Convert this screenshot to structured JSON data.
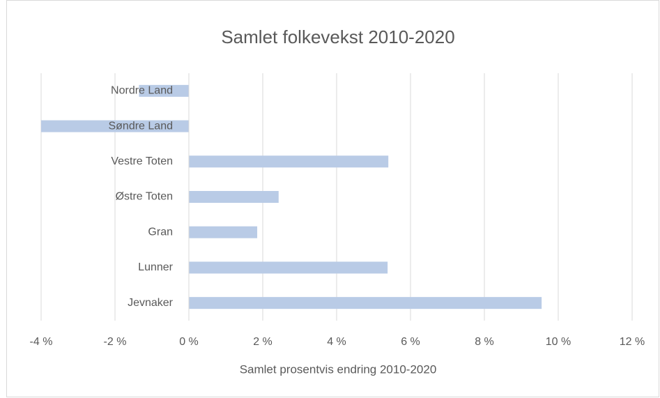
{
  "chart_data": {
    "type": "bar",
    "orientation": "horizontal",
    "title": "Samlet folkevekst 2010-2020",
    "x_label": "Samlet prosentvis endring 2010-2020",
    "categories": [
      "Nordre Land",
      "Søndre Land",
      "Vestre Toten",
      "Østre Toten",
      "Gran",
      "Lunner",
      "Jevnaker"
    ],
    "values": [
      -1.35,
      -4.0,
      5.4,
      2.43,
      1.85,
      5.38,
      9.55
    ],
    "color": "#b9cbe6",
    "xlim": [
      -4,
      12
    ],
    "xticks": [
      {
        "value": -4,
        "label": "-4 %"
      },
      {
        "value": -2,
        "label": "-2 %"
      },
      {
        "value": 0,
        "label": "0 %"
      },
      {
        "value": 2,
        "label": "2 %"
      },
      {
        "value": 4,
        "label": "4 %"
      },
      {
        "value": 6,
        "label": "6 %"
      },
      {
        "value": 8,
        "label": "8 %"
      },
      {
        "value": 10,
        "label": "10 %"
      },
      {
        "value": 12,
        "label": "12 %"
      }
    ],
    "grid": true
  }
}
